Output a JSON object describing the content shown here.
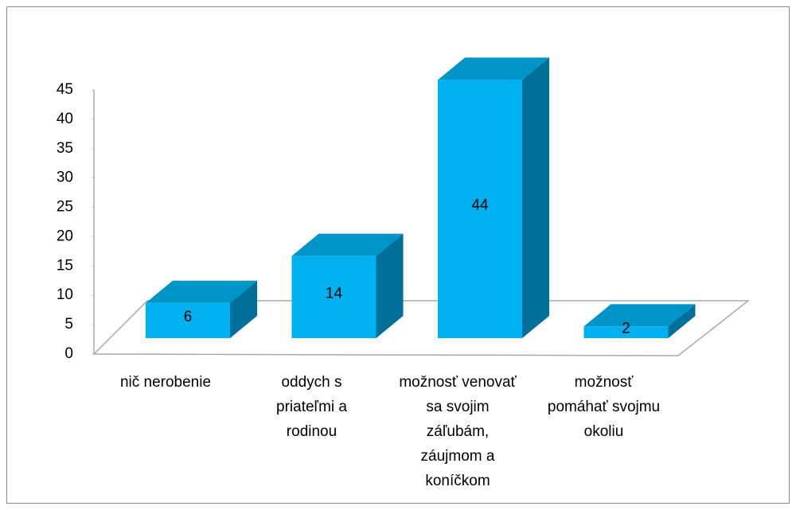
{
  "chart_data": {
    "type": "bar3d",
    "categories": [
      "nič nerobenie",
      "oddych s priateľmi a rodinou",
      "možnosť venovať sa svojim záľubám, záujmom a koníčkom",
      "možnosť pomáhať svojmu okoliu"
    ],
    "values": [
      6,
      14,
      44,
      2
    ],
    "color": "#00b0f0",
    "ylim": [
      0,
      45
    ],
    "yticks": [
      0,
      5,
      10,
      15,
      20,
      25,
      30,
      35,
      40,
      45
    ]
  }
}
